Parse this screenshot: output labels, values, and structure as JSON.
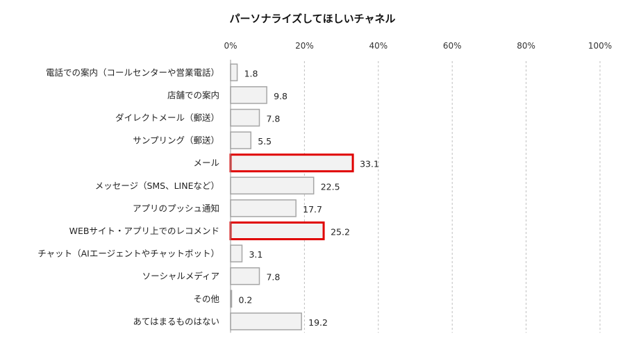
{
  "chart_data": {
    "type": "bar",
    "orientation": "horizontal",
    "title": "パーソナライズしてほしいチャネル",
    "categories": [
      "電話での案内（コールセンターや営業電話）",
      "店舗での案内",
      "ダイレクトメール（郵送）",
      "サンプリング（郵送）",
      "メール",
      "メッセージ（SMS、LINEなど）",
      "アプリのプッシュ通知",
      "WEBサイト・アプリ上でのレコメンド",
      "チャット（AIエージェントやチャットボット）",
      "ソーシャルメディア",
      "その他",
      "あてはまるものはない"
    ],
    "values": [
      1.8,
      9.8,
      7.8,
      5.5,
      33.1,
      22.5,
      17.7,
      25.2,
      3.1,
      7.8,
      0.2,
      19.2
    ],
    "value_labels": [
      "1.8",
      "9.8",
      "7.8",
      "5.5",
      "33.1",
      "22.5",
      "17.7",
      "25.2",
      "3.1",
      "7.8",
      "0.2",
      "19.2"
    ],
    "highlighted": [
      false,
      false,
      false,
      false,
      true,
      false,
      false,
      true,
      false,
      false,
      false,
      false
    ],
    "xlim": [
      0,
      100
    ],
    "xticks": [
      0,
      20,
      40,
      60,
      80,
      100
    ],
    "xtick_labels": [
      "0%",
      "20%",
      "40%",
      "60%",
      "80%",
      "100%"
    ],
    "grid": "vertical dashed",
    "colors": {
      "bar_fill": "#f2f2f2",
      "bar_stroke": "#a6a6a6",
      "highlight_stroke": "#e00000",
      "grid": "#bfbfbf",
      "axis": "#999999"
    }
  }
}
